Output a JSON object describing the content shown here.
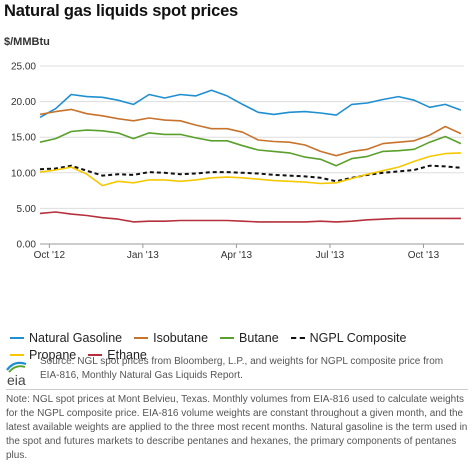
{
  "chart_data": {
    "type": "line",
    "title": "Natural gas liquids spot prices",
    "ylabel": "$/MMBtu",
    "xlabel": "",
    "ylim": [
      0,
      25
    ],
    "y_ticks": [
      "0.00",
      "5.00",
      "10.00",
      "15.00",
      "20.00",
      "25.00"
    ],
    "x_ticks": [
      {
        "label": "Oct '12",
        "month": 0
      },
      {
        "label": "Jan '13",
        "month": 3
      },
      {
        "label": "Apr '13",
        "month": 6
      },
      {
        "label": "Jul '13",
        "month": 9
      },
      {
        "label": "Oct '13",
        "month": 12
      }
    ],
    "xlim_months": [
      -0.3,
      13.3
    ],
    "grid": "horizontal",
    "legend_position": "bottom",
    "x": [
      -0.3,
      0.2,
      0.7,
      1.2,
      1.7,
      2.2,
      2.7,
      3.2,
      3.7,
      4.2,
      4.7,
      5.2,
      5.7,
      6.2,
      6.7,
      7.2,
      7.7,
      8.2,
      8.7,
      9.2,
      9.7,
      10.2,
      10.7,
      11.2,
      11.7,
      12.2,
      12.7,
      13.2
    ],
    "series": [
      {
        "name": "Natural Gasoline",
        "color": "#1f8fd1",
        "dashed": false,
        "values": [
          17.8,
          19.0,
          21.0,
          20.7,
          20.6,
          20.2,
          19.6,
          21.0,
          20.5,
          21.0,
          20.8,
          21.6,
          20.8,
          19.6,
          18.5,
          18.2,
          18.5,
          18.6,
          18.4,
          18.1,
          19.6,
          19.8,
          20.3,
          20.7,
          20.2,
          19.2,
          19.6,
          18.8
        ]
      },
      {
        "name": "Isobutane",
        "color": "#c8732c",
        "dashed": false,
        "values": [
          18.2,
          18.6,
          18.9,
          18.3,
          18.0,
          17.6,
          17.3,
          17.7,
          17.4,
          17.3,
          16.7,
          16.2,
          16.2,
          15.7,
          14.6,
          14.4,
          14.3,
          13.9,
          13.0,
          12.4,
          13.0,
          13.3,
          14.1,
          14.3,
          14.5,
          15.3,
          16.5,
          15.5
        ]
      },
      {
        "name": "Butane",
        "color": "#5aa02c",
        "dashed": false,
        "values": [
          14.3,
          14.8,
          15.8,
          16.0,
          15.9,
          15.6,
          14.8,
          15.6,
          15.4,
          15.4,
          14.9,
          14.5,
          14.5,
          13.8,
          13.2,
          13.0,
          12.8,
          12.2,
          11.9,
          11.0,
          12.0,
          12.3,
          13.0,
          13.1,
          13.3,
          14.3,
          15.1,
          14.1
        ]
      },
      {
        "name": "NGPL Composite",
        "color": "#111111",
        "dashed": true,
        "values": [
          10.5,
          10.6,
          11.0,
          10.3,
          9.6,
          9.8,
          9.7,
          10.1,
          10.0,
          9.8,
          9.9,
          10.1,
          10.1,
          10.0,
          9.9,
          9.7,
          9.6,
          9.5,
          9.3,
          8.8,
          9.3,
          9.7,
          10.0,
          10.2,
          10.4,
          11.0,
          10.9,
          10.7
        ]
      },
      {
        "name": "Propane",
        "color": "#f5c800",
        "dashed": false,
        "values": [
          10.1,
          10.4,
          10.8,
          9.8,
          8.2,
          8.8,
          8.6,
          9.0,
          9.0,
          8.8,
          9.0,
          9.3,
          9.4,
          9.3,
          9.1,
          8.9,
          8.8,
          8.7,
          8.5,
          8.6,
          9.2,
          9.8,
          10.3,
          10.8,
          11.6,
          12.3,
          12.7,
          12.8
        ]
      },
      {
        "name": "Ethane",
        "color": "#b5303c",
        "dashed": false,
        "values": [
          4.3,
          4.5,
          4.2,
          4.0,
          3.7,
          3.5,
          3.1,
          3.2,
          3.2,
          3.3,
          3.3,
          3.3,
          3.3,
          3.2,
          3.1,
          3.1,
          3.1,
          3.1,
          3.2,
          3.1,
          3.2,
          3.4,
          3.5,
          3.6,
          3.6,
          3.6,
          3.6,
          3.6
        ]
      }
    ]
  },
  "legend": {
    "row1": [
      "Natural Gasoline",
      "Isobutane",
      "Butane",
      "NGPL Composite"
    ],
    "row2": [
      "Propane",
      "Ethane"
    ]
  },
  "colors": {
    "Natural Gasoline": "#1f8fd1",
    "Isobutane": "#c8732c",
    "Butane": "#5aa02c",
    "NGPL Composite": "#111111",
    "Propane": "#f5c800",
    "Ethane": "#b5303c"
  },
  "footer": {
    "logo_text": "eia",
    "source": "Source: NGL spot prices from Bloomberg, L.P., and weights for NGPL composite price from EIA-816, Monthly Natural Gas Liquids Report.",
    "note": "Note: NGL spot prices at Mont Belvieu, Texas. Monthly volumes from EIA-816 used to calculate weights for the NGPL composite price. EIA-816 volume weights are constant throughout a given month, and the latest available weights are applied to the three most recent months. Natural gasoline is the term used in the spot and futures markets to describe pentanes and hexanes, the primary components of pentanes plus."
  }
}
